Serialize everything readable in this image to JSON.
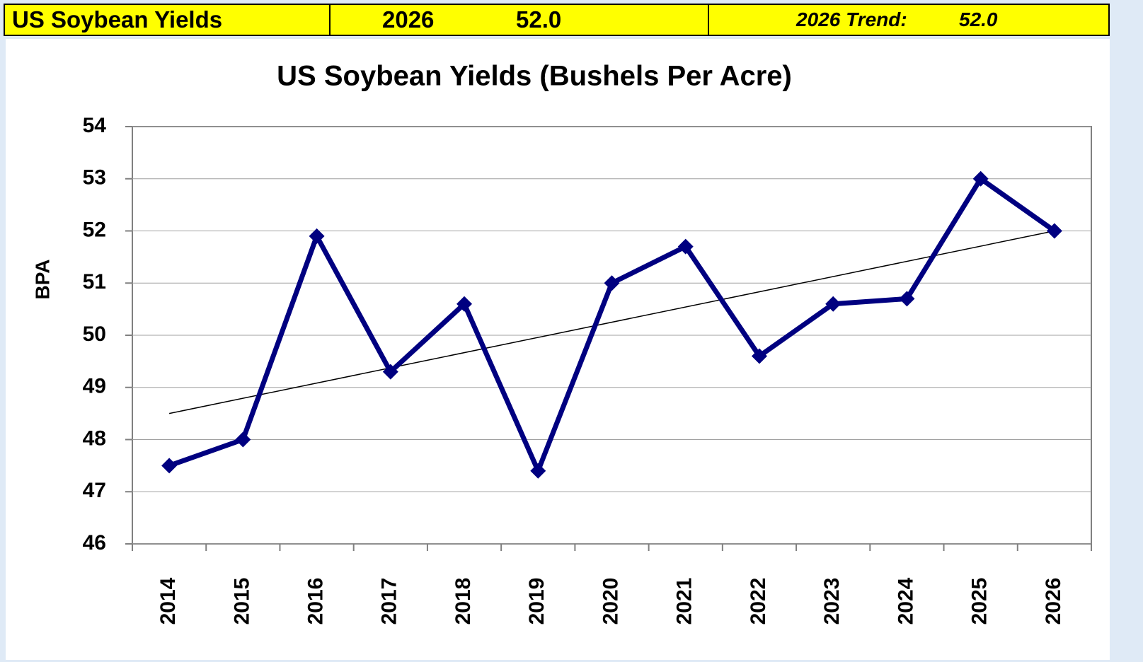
{
  "header": {
    "title": "US Soybean Yields",
    "year": "2026",
    "value": "52.0",
    "trend_label": "2026 Trend:",
    "trend_value": "52.0"
  },
  "chart_data": {
    "type": "line",
    "title": "US Soybean Yields (Bushels Per Acre)",
    "y_label": "BPA",
    "categories": [
      "2014",
      "2015",
      "2016",
      "2017",
      "2018",
      "2019",
      "2020",
      "2021",
      "2022",
      "2023",
      "2024",
      "2025",
      "2026"
    ],
    "series": [
      {
        "color": "#000080",
        "values": [
          47.5,
          48.0,
          51.9,
          49.3,
          50.6,
          47.4,
          51.0,
          51.7,
          49.6,
          50.6,
          50.7,
          53.0,
          52.0
        ]
      }
    ],
    "trend": {
      "color": "#000000",
      "values": [
        48.5,
        52.0
      ]
    },
    "ylim": [
      46,
      54
    ],
    "yticks": [
      46,
      47,
      48,
      49,
      50,
      51,
      52,
      53,
      54
    ],
    "grid": true
  }
}
